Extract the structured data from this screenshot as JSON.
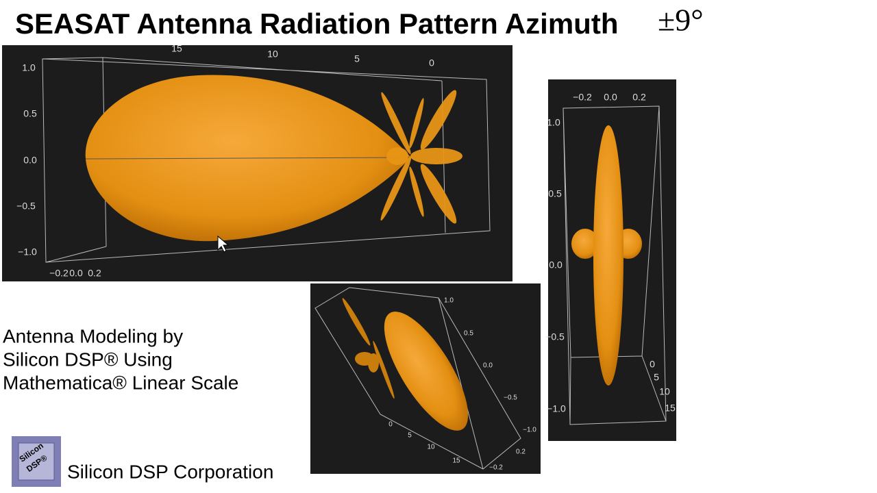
{
  "title": "SEASAT Antenna Radiation Pattern Azimuth",
  "title_math": "±9°",
  "caption": [
    "Antenna Modeling by",
    "Silicon DSP® Using",
    "Mathematica® Linear Scale"
  ],
  "logo": [
    "Silicon",
    "DSP®"
  ],
  "company": "Silicon DSP Corporation",
  "plots": [
    {
      "top_ticks": [
        "15",
        "10",
        "5",
        "0"
      ],
      "left_ticks": [
        "1.0",
        "0.5",
        "0.0",
        "−0.5",
        "−1.0"
      ],
      "bottom_ticks": [
        "−0.2",
        "0.0",
        "0.2"
      ]
    },
    {
      "top_ticks": [
        "−0.2",
        "0.0",
        "0.2"
      ],
      "left_ticks": [
        "1.0",
        "0.5",
        "0.0",
        "−0.5",
        "−1.0"
      ],
      "right_ticks": [
        "0",
        "5",
        "10",
        "15"
      ]
    },
    {
      "right_ticks": [
        "1.0",
        "0.5",
        "0.0",
        "−0.5",
        "−1.0"
      ],
      "bottom_ticks": [
        "0",
        "5",
        "10",
        "15"
      ],
      "depth_ticks": [
        "0.2",
        "−0.2"
      ]
    }
  ]
}
